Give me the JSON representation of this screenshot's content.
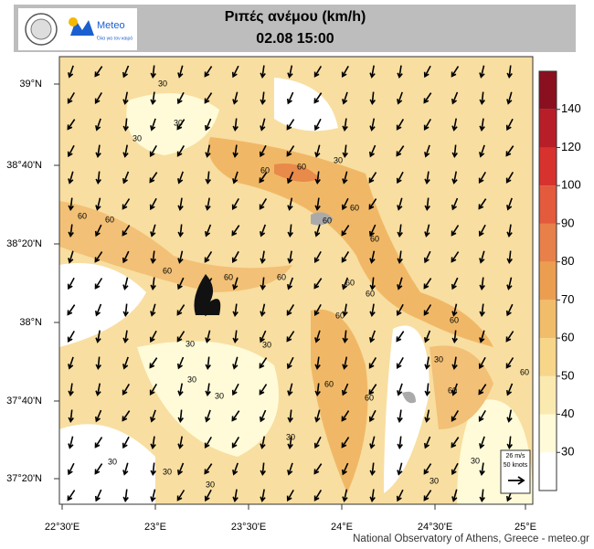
{
  "header": {
    "title": "Ριπές ανέμου (km/h)",
    "subtitle": "02.08 15:00",
    "logo_name": "Meteo",
    "logo_tagline": "Όλα για τον καιρό"
  },
  "map": {
    "lat_labels": [
      "39°N",
      "38°40'N",
      "38°20'N",
      "38°N",
      "37°40'N",
      "37°20'N"
    ],
    "lon_labels": [
      "22°30'E",
      "23°E",
      "23°30'E",
      "24°E",
      "24°30'E",
      "25°E"
    ],
    "contour_labels": [
      "30",
      "30",
      "30",
      "60",
      "60",
      "30",
      "60",
      "60",
      "60",
      "60",
      "60",
      "60",
      "60",
      "60",
      "60",
      "60",
      "60",
      "60",
      "30",
      "30",
      "30",
      "30",
      "60",
      "60",
      "30",
      "60",
      "60",
      "30",
      "30",
      "30",
      "30",
      "30",
      "30"
    ],
    "wind_legend": {
      "speed": "26 m/s",
      "knots": "50 knots"
    },
    "credit": "National Observatory of Athens, Greece - meteo.gr"
  },
  "colorbar": {
    "ticks": [
      30,
      40,
      50,
      60,
      70,
      80,
      90,
      100,
      120,
      140
    ],
    "colors": [
      "#ffffff",
      "#fffbd8",
      "#fbeab0",
      "#f7d68a",
      "#f2bd6a",
      "#ec9e50",
      "#e8804a",
      "#e35a3c",
      "#d8322e",
      "#b81e28",
      "#8a1020"
    ]
  }
}
